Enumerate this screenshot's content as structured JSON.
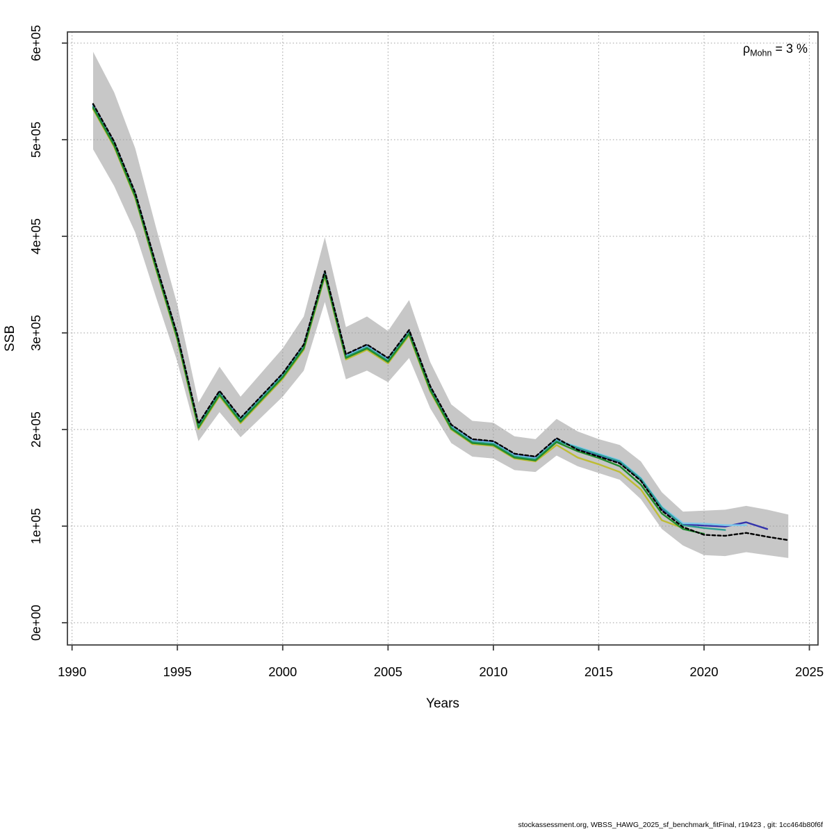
{
  "annotations": {
    "mohn_rho": {
      "symbol": "ρ",
      "subscript": "Mohn",
      "rest": " = 3 %"
    },
    "caption": "stockassessment.org, WBSS_HAWG_2025_sf_benchmark_fitFinal, r19423 , git: 1cc464b80f6f"
  },
  "chart_data": {
    "type": "line",
    "title": "",
    "xlabel": "Years",
    "ylabel": "SSB",
    "x_ticks": [
      1990,
      1995,
      2000,
      2005,
      2010,
      2015,
      2020,
      2025
    ],
    "x_tick_labels": [
      "1990",
      "1995",
      "2000",
      "2005",
      "2010",
      "2015",
      "2020",
      "2025"
    ],
    "y_ticks": [
      0,
      100000,
      200000,
      300000,
      400000,
      500000,
      600000
    ],
    "y_tick_labels": [
      "0e+00",
      "1e+05",
      "2e+05",
      "3e+05",
      "4e+05",
      "5e+05",
      "6e+05"
    ],
    "xlim": [
      1989.78,
      2025.41
    ],
    "ylim": [
      -23000,
      611500
    ],
    "grid": "dotted",
    "grid_color": "#9C9C9C",
    "frame_color": "#3F3F3F",
    "band": {
      "name": "confidence-band-base-run",
      "color": "#C7C7C7",
      "start_year": 1991,
      "lo": [
        490000,
        452000,
        404000,
        336000,
        270000,
        188000,
        218000,
        192000,
        213000,
        234000,
        261000,
        332000,
        252000,
        261000,
        249000,
        274000,
        222000,
        186000,
        172000,
        170000,
        158000,
        156000,
        173000,
        162000,
        155000,
        148000,
        128000,
        97000,
        80000,
        70000,
        69000,
        73000,
        70000,
        67000
      ],
      "hi": [
        591000,
        549000,
        491000,
        408000,
        329000,
        228000,
        265000,
        234000,
        259000,
        284000,
        317000,
        399000,
        306000,
        317000,
        302000,
        334000,
        270000,
        226000,
        209000,
        207000,
        193000,
        190000,
        211000,
        198000,
        190000,
        184000,
        167000,
        135000,
        115000,
        116000,
        117000,
        121000,
        117000,
        112000
      ]
    },
    "series": [
      {
        "name": "fit-2024-base",
        "color": "#000000",
        "dashed": true,
        "start_year": 1991,
        "end_year": 2024,
        "values": [
          537000,
          498000,
          445000,
          370000,
          298000,
          206000,
          240000,
          212000,
          235000,
          258000,
          288000,
          364000,
          278000,
          288000,
          274000,
          303000,
          245000,
          205000,
          190000,
          188000,
          175000,
          172000,
          191000,
          179000,
          172000,
          165000,
          147000,
          116000,
          99000,
          91000,
          90000,
          93000,
          89000,
          85500
        ]
      },
      {
        "name": "retro-peel-2023",
        "color": "#3434AC",
        "dashed": false,
        "start_year": 1991,
        "end_year": 2023,
        "values": [
          536200,
          497200,
          444200,
          369200,
          297200,
          205200,
          239200,
          211200,
          234200,
          257200,
          287200,
          363200,
          277200,
          287200,
          273200,
          302200,
          244200,
          204200,
          189200,
          187200,
          174200,
          171200,
          190200,
          180000,
          173000,
          166000,
          148000,
          117500,
          102000,
          100500,
          99500,
          104000,
          97000
        ]
      },
      {
        "name": "retro-peel-2022",
        "color": "#7FC9EA",
        "dashed": false,
        "start_year": 1991,
        "end_year": 2022,
        "values": [
          535200,
          496200,
          443200,
          368200,
          296200,
          204200,
          238200,
          210200,
          233200,
          256200,
          286200,
          362200,
          276200,
          286200,
          272200,
          301200,
          243200,
          203200,
          188200,
          186200,
          173200,
          170200,
          189200,
          182000,
          175000,
          168000,
          150000,
          120000,
          103000,
          102500,
          101000,
          101000
        ]
      },
      {
        "name": "retro-peel-2021",
        "color": "#2E9E94",
        "dashed": false,
        "start_year": 1991,
        "end_year": 2021,
        "values": [
          534200,
          495200,
          442200,
          367200,
          295200,
          203200,
          237200,
          209200,
          232200,
          255200,
          285200,
          361200,
          275200,
          285200,
          271200,
          300200,
          242200,
          202200,
          187200,
          185200,
          172200,
          169200,
          188200,
          181000,
          174000,
          167000,
          149000,
          119000,
          101000,
          98000,
          96000
        ]
      },
      {
        "name": "retro-peel-2020",
        "color": "#208B2E",
        "dashed": false,
        "start_year": 1991,
        "end_year": 2020,
        "values": [
          533000,
          494000,
          441000,
          366000,
          294000,
          202000,
          236000,
          208000,
          231000,
          254000,
          284000,
          360000,
          274000,
          284000,
          270000,
          299000,
          241000,
          201000,
          186000,
          184000,
          171000,
          168000,
          187000,
          177500,
          170500,
          162000,
          143000,
          113000,
          97000,
          92000
        ]
      },
      {
        "name": "retro-peel-2019",
        "color": "#BEBC33",
        "dashed": false,
        "start_year": 1991,
        "end_year": 2019,
        "values": [
          531500,
          492500,
          439500,
          364500,
          292500,
          200500,
          234500,
          206500,
          229500,
          252500,
          282500,
          358500,
          272500,
          282500,
          268500,
          297500,
          239500,
          200000,
          185000,
          183000,
          170000,
          167000,
          184000,
          171000,
          164000,
          156000,
          138000,
          106000,
          98000
        ]
      }
    ]
  }
}
